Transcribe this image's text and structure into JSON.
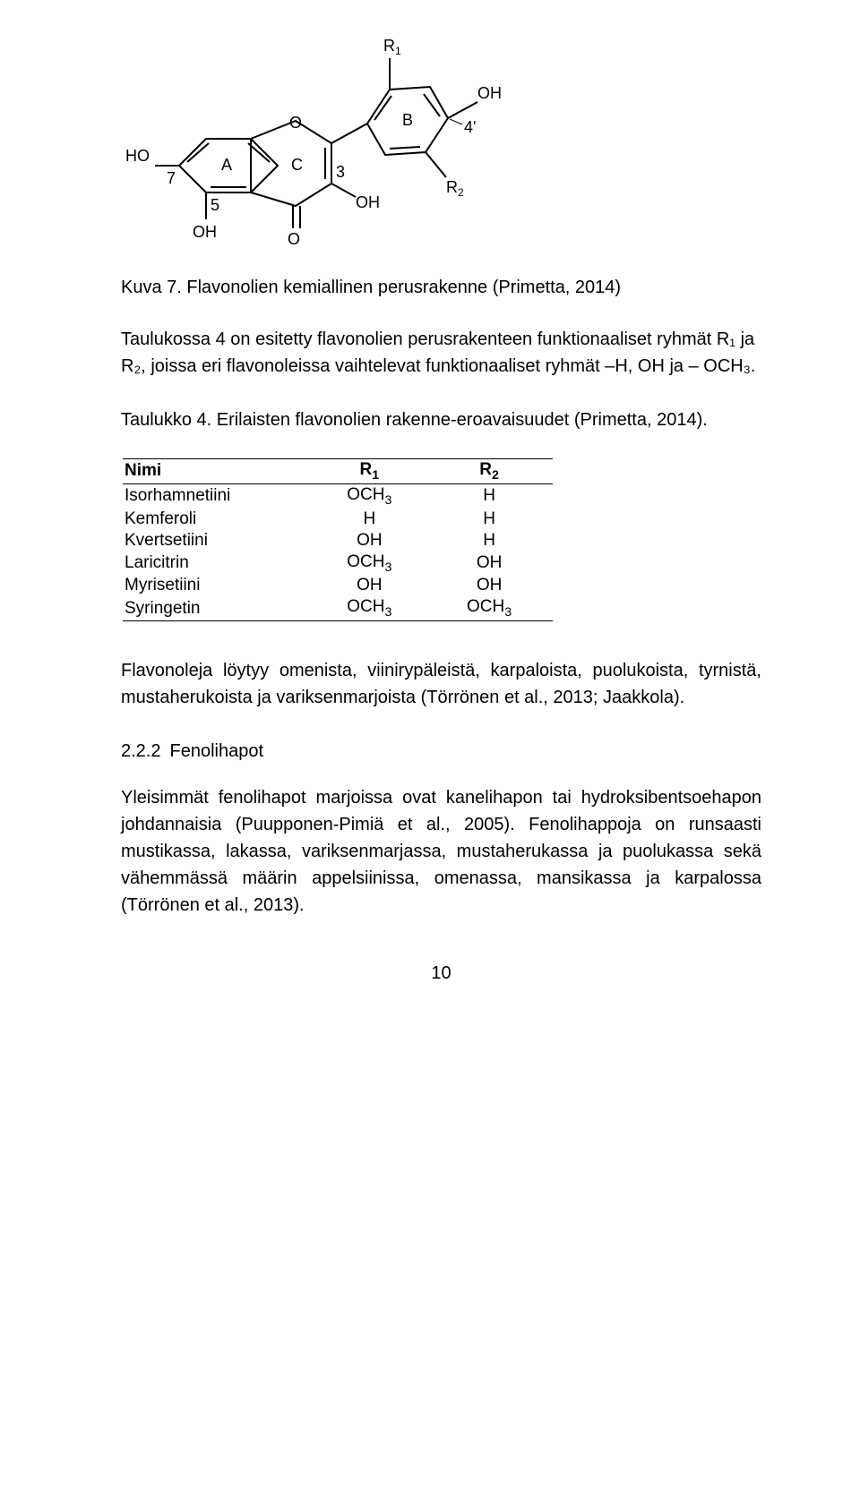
{
  "figure_caption": "Kuva 7. Flavonolien kemiallinen perusrakenne (Primetta, 2014)",
  "intro_text": "Taulukossa 4 on esitetty flavonolien perusrakenteen funktionaaliset ryhmät R₁ ja R₂, joissa eri flavonoleissa vaihtelevat funktionaaliset ryhmät –H, OH ja – OCH₃.",
  "table_caption": "Taulukko 4. Erilaisten flavonolien rakenne-eroavaisuudet (Primetta, 2014).",
  "table": {
    "headers": {
      "c0": "Nimi",
      "c1_main": "R",
      "c1_sub": "1",
      "c2_main": "R",
      "c2_sub": "2"
    },
    "rows": [
      {
        "name": "Isorhamnetiini",
        "r1_main": "OCH",
        "r1_sub": "3",
        "r2_main": "H",
        "r2_sub": ""
      },
      {
        "name": "Kemferoli",
        "r1_main": "H",
        "r1_sub": "",
        "r2_main": "H",
        "r2_sub": ""
      },
      {
        "name": "Kvertsetiini",
        "r1_main": "OH",
        "r1_sub": "",
        "r2_main": "H",
        "r2_sub": ""
      },
      {
        "name": "Laricitrin",
        "r1_main": "OCH",
        "r1_sub": "3",
        "r2_main": "OH",
        "r2_sub": ""
      },
      {
        "name": "Myrisetiini",
        "r1_main": "OH",
        "r1_sub": "",
        "r2_main": "OH",
        "r2_sub": ""
      },
      {
        "name": "Syringetin",
        "r1_main": "OCH",
        "r1_sub": "3",
        "r2_main": "OCH",
        "r2_sub": "3"
      }
    ]
  },
  "para1": "Flavonoleja löytyy omenista, viinirypäleistä, karpaloista, puolukoista, tyrnistä, mustaherukoista ja variksenmarjoista  (Törrönen et al., 2013; Jaakkola).",
  "section": {
    "number": "2.2.2",
    "title": "Fenolihapot"
  },
  "para2": "Yleisimmät fenolihapot marjoissa ovat kanelihapon tai hydroksibentsoehapon johdannaisia (Puupponen-Pimiä et al., 2005). Fenolihappoja on runsaasti mustikassa, lakassa, variksenmarjassa, mustaherukassa ja puolukassa sekä vähemmässä määrin appelsiinissa, omenassa, mansikassa ja karpalossa (Törrönen et al., 2013).",
  "page_number": "10",
  "molecule": {
    "stroke": "#000000",
    "text_color": "#000000",
    "font_family": "Arial, Helvetica, sans-serif",
    "atom_labels": {
      "HO_left": "HO",
      "seven": "7",
      "A": "A",
      "five": "5",
      "OH_bottom1": "OH",
      "O_c3_dbl": "O",
      "C": "C",
      "three": "3",
      "OH_3": "OH",
      "O_top": "O",
      "R1": "R",
      "R1_sub": "1",
      "B": "B",
      "fourp": "4'",
      "OH_4p": "OH",
      "R2": "R",
      "R2_sub": "2"
    }
  }
}
